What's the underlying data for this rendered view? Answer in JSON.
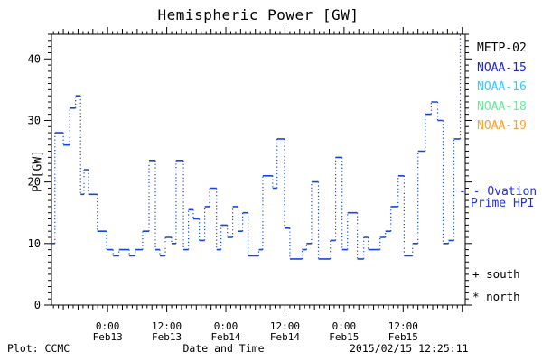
{
  "title": "Hemispheric Power [GW]",
  "colors": {
    "axis": "#000000",
    "curve": "#1747d8",
    "ovation_text": "#2233dd",
    "metp02": "#000000",
    "noaa15": "#2222dd",
    "noaa16": "#33ccff",
    "noaa18": "#66ee99",
    "noaa19": "#ffa226"
  },
  "legend": {
    "satellites": [
      {
        "label": "METP-02",
        "color": "#000000"
      },
      {
        "label": "NOAA-15",
        "color": "#2222dd"
      },
      {
        "label": "NOAA-16",
        "color": "#33ccff"
      },
      {
        "label": "NOAA-18",
        "color": "#66ee99"
      },
      {
        "label": "NOAA-19",
        "color": "#ffa226"
      }
    ],
    "ovation": {
      "marker": "- -",
      "label_line1": "Ovation",
      "label_line2": "Prime HPI",
      "color": "#2233dd"
    },
    "south_symbol": "+",
    "south_label": "south",
    "north_symbol": "*",
    "north_label": "north"
  },
  "footer": {
    "plot_credit": "Plot: CCMC",
    "timestamp": "2015/02/15 12:25:11"
  },
  "chart_data": {
    "type": "line",
    "step": true,
    "title": "Hemispheric Power [GW]",
    "xlabel": "Date and Time",
    "ylabel": "P [GW]",
    "xlim": [
      0,
      84
    ],
    "ylim": [
      0,
      44
    ],
    "x_unit": "hours",
    "grid": false,
    "yticks": [
      0,
      10,
      20,
      30,
      40
    ],
    "ytick_minor_step": 1,
    "xtick_minor_step": 1,
    "xtick_mid_every": 3,
    "xticks": [
      {
        "t": 11.4,
        "time": "0:00",
        "date": "Feb13"
      },
      {
        "t": 23.4,
        "time": "12:00",
        "date": "Feb13"
      },
      {
        "t": 35.4,
        "time": "0:00",
        "date": "Feb14"
      },
      {
        "t": 47.4,
        "time": "12:00",
        "date": "Feb14"
      },
      {
        "t": 59.4,
        "time": "0:00",
        "date": "Feb15"
      },
      {
        "t": 71.4,
        "time": "12:00",
        "date": "Feb15"
      }
    ],
    "series": [
      {
        "name": "Ovation Prime HPI",
        "color": "#1747d8",
        "points": [
          [
            0,
            10
          ],
          [
            0.7,
            28
          ],
          [
            2.4,
            26
          ],
          [
            3.7,
            32
          ],
          [
            4.9,
            34
          ],
          [
            5.9,
            18
          ],
          [
            6.6,
            22
          ],
          [
            7.5,
            18
          ],
          [
            9.3,
            12
          ],
          [
            11.2,
            9
          ],
          [
            12.5,
            8
          ],
          [
            13.7,
            9
          ],
          [
            15.8,
            8
          ],
          [
            17,
            9
          ],
          [
            18.5,
            12
          ],
          [
            19.8,
            23.5
          ],
          [
            21.1,
            9
          ],
          [
            22,
            8
          ],
          [
            23.1,
            11
          ],
          [
            24.4,
            10
          ],
          [
            25.3,
            23.5
          ],
          [
            26.8,
            9
          ],
          [
            27.8,
            15.5
          ],
          [
            28.8,
            14
          ],
          [
            30,
            10.5
          ],
          [
            31.1,
            16
          ],
          [
            32.1,
            19
          ],
          [
            33.5,
            9
          ],
          [
            34.4,
            13
          ],
          [
            35.7,
            11
          ],
          [
            36.8,
            16
          ],
          [
            37.9,
            12
          ],
          [
            38.8,
            15
          ],
          [
            39.9,
            8
          ],
          [
            42.1,
            9
          ],
          [
            42.9,
            21
          ],
          [
            44.9,
            19
          ],
          [
            45.8,
            27
          ],
          [
            47.3,
            12.5
          ],
          [
            48.4,
            7.5
          ],
          [
            50.9,
            9
          ],
          [
            51.8,
            10
          ],
          [
            52.8,
            20
          ],
          [
            54.2,
            7.5
          ],
          [
            56.6,
            10.5
          ],
          [
            57.7,
            24
          ],
          [
            59,
            9
          ],
          [
            60.1,
            15
          ],
          [
            62.1,
            7.5
          ],
          [
            63.4,
            11
          ],
          [
            64.3,
            9
          ],
          [
            66.7,
            11
          ],
          [
            67.8,
            12
          ],
          [
            68.9,
            16
          ],
          [
            70.4,
            21
          ],
          [
            71.6,
            8
          ],
          [
            73.3,
            10
          ],
          [
            74.4,
            25
          ],
          [
            75.9,
            31
          ],
          [
            77.1,
            33
          ],
          [
            78.4,
            30
          ],
          [
            79.5,
            10
          ],
          [
            80.6,
            10.5
          ],
          [
            81.7,
            27
          ],
          [
            83,
            44
          ]
        ]
      }
    ]
  }
}
